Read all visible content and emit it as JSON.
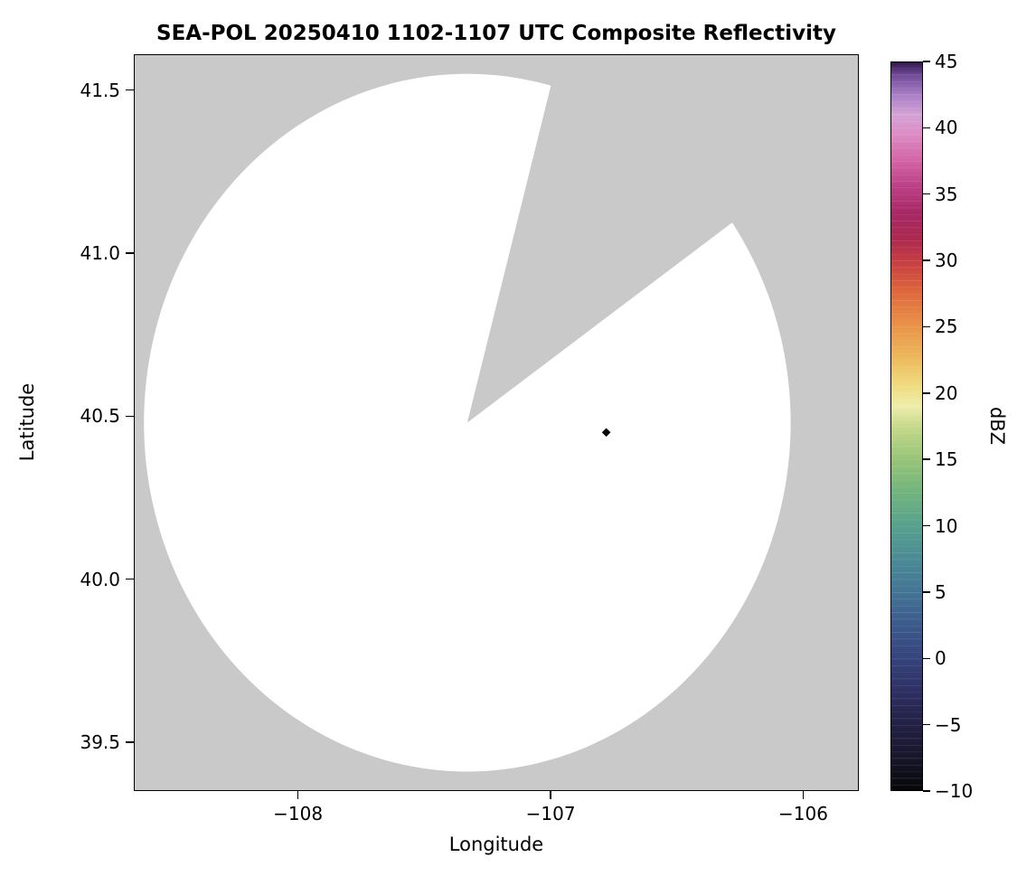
{
  "chart_data": {
    "type": "heatmap",
    "subtype": "radar-composite-reflectivity-ppi",
    "title": "SEA-POL 20250410 1102-1107 UTC Composite Reflectivity",
    "xlabel": "Longitude",
    "ylabel": "Latitude",
    "xlim": [
      -108.65,
      -105.78
    ],
    "ylim": [
      39.35,
      41.61
    ],
    "grid": false,
    "plot_bg_color": "#c9c9c9",
    "coverage_color": "#ffffff",
    "spine_color": "#000000",
    "xticks": [
      {
        "v": -108,
        "label": "−108"
      },
      {
        "v": -107,
        "label": "−107"
      },
      {
        "v": -106,
        "label": "−106"
      }
    ],
    "yticks": [
      {
        "v": 41.5,
        "label": "41.5"
      },
      {
        "v": 41.0,
        "label": "41.0"
      },
      {
        "v": 40.5,
        "label": "40.5"
      },
      {
        "v": 40.0,
        "label": "40.0"
      },
      {
        "v": 39.5,
        "label": "39.5"
      }
    ],
    "radar_coverage": {
      "center_lon": -107.33,
      "center_lat": 40.48,
      "radius_lon_deg": 1.28,
      "radius_lat_deg": 1.07,
      "missing_sector_screen_deg": [
        15,
        55
      ],
      "note": "white disk = radar scan coverage; gray wedge from center toward NNE-NE = missing/blocked azimuth sector"
    },
    "echoes": [
      {
        "lon": -106.78,
        "lat": 40.45,
        "dbz": -10
      }
    ],
    "colorbar": {
      "label": "dBZ",
      "min": -10,
      "max": 45,
      "ticks": [
        {
          "v": 45,
          "label": "45"
        },
        {
          "v": 40,
          "label": "40"
        },
        {
          "v": 35,
          "label": "35"
        },
        {
          "v": 30,
          "label": "30"
        },
        {
          "v": 25,
          "label": "25"
        },
        {
          "v": 20,
          "label": "20"
        },
        {
          "v": 15,
          "label": "15"
        },
        {
          "v": 10,
          "label": "10"
        },
        {
          "v": 5,
          "label": "5"
        },
        {
          "v": 0,
          "label": "0"
        },
        {
          "v": -5,
          "label": "−5"
        },
        {
          "v": -10,
          "label": "−10"
        }
      ],
      "stops": [
        {
          "v": -10,
          "c": "#060608"
        },
        {
          "v": -7.5,
          "c": "#17162a"
        },
        {
          "v": -5,
          "c": "#232044"
        },
        {
          "v": -2.5,
          "c": "#2e2f63"
        },
        {
          "v": 0,
          "c": "#35447c"
        },
        {
          "v": 2.5,
          "c": "#3c5a8b"
        },
        {
          "v": 5,
          "c": "#437495"
        },
        {
          "v": 7.5,
          "c": "#4b8b95"
        },
        {
          "v": 10,
          "c": "#57a18d"
        },
        {
          "v": 12.5,
          "c": "#72b47e"
        },
        {
          "v": 15,
          "c": "#97c478"
        },
        {
          "v": 17.5,
          "c": "#c6d98b"
        },
        {
          "v": 19,
          "c": "#eeedab"
        },
        {
          "v": 20.5,
          "c": "#f0dc81"
        },
        {
          "v": 22.5,
          "c": "#eebb5e"
        },
        {
          "v": 25,
          "c": "#e9944a"
        },
        {
          "v": 27.5,
          "c": "#df6a3d"
        },
        {
          "v": 29.5,
          "c": "#cc4440"
        },
        {
          "v": 31.5,
          "c": "#ad2a4e"
        },
        {
          "v": 33.5,
          "c": "#a62865"
        },
        {
          "v": 35.5,
          "c": "#bb3f85"
        },
        {
          "v": 37.5,
          "c": "#d264a6"
        },
        {
          "v": 39.5,
          "c": "#dd8cc4"
        },
        {
          "v": 41,
          "c": "#d3a3d6"
        },
        {
          "v": 42.5,
          "c": "#a87ec5"
        },
        {
          "v": 44,
          "c": "#6f4a96"
        },
        {
          "v": 45,
          "c": "#2e1345"
        }
      ]
    }
  }
}
